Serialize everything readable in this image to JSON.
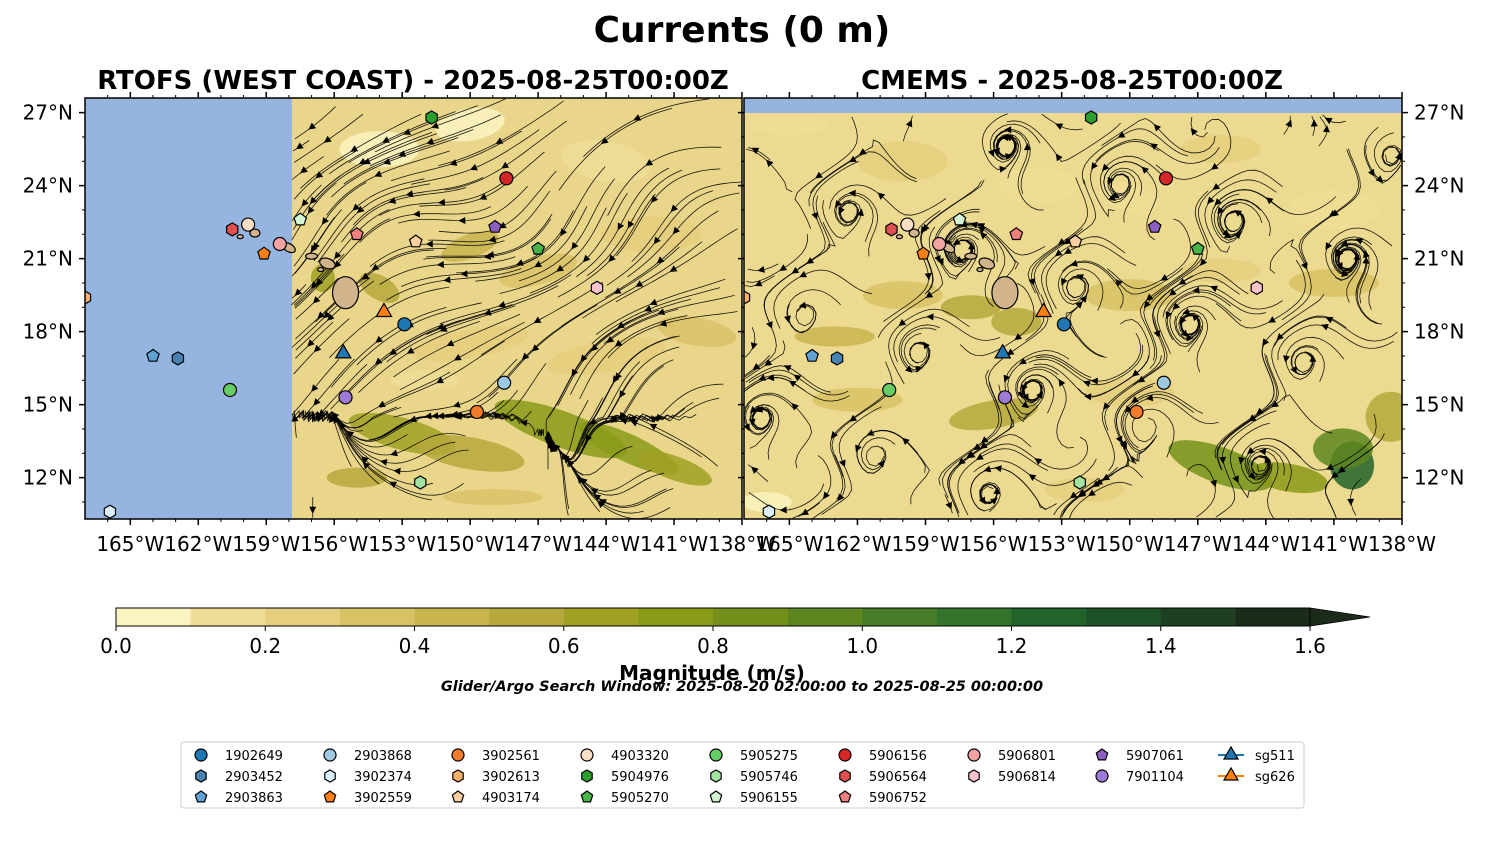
{
  "figure": {
    "title": "Currents (0 m)",
    "search_window": "Glider/Argo Search Window: 2025-08-20 02:00:00 to 2025-08-25 00:00:00"
  },
  "panels": [
    {
      "title": "RTOFS (WEST COAST) - 2025-08-25T00:00Z"
    },
    {
      "title": "CMEMS - 2025-08-25T00:00Z"
    }
  ],
  "colorbar": {
    "label": "Magnitude (m/s)",
    "ticks": [
      "0.0",
      "0.2",
      "0.4",
      "0.6",
      "0.8",
      "1.0",
      "1.2",
      "1.4",
      "1.6"
    ],
    "levels": [
      0.0,
      0.1,
      0.2,
      0.3,
      0.4,
      0.5,
      0.6,
      0.7,
      0.8,
      0.9,
      1.0,
      1.1,
      1.2,
      1.3,
      1.4,
      1.5,
      1.6
    ],
    "extend": "max",
    "colors": [
      "#fbf3c0",
      "#f0dd95",
      "#e5cf7e",
      "#d9c266",
      "#c9b44d",
      "#b6a83d",
      "#9fa125",
      "#899a18",
      "#74901a",
      "#5e8620",
      "#487d28",
      "#33732c",
      "#22632c",
      "#1c5228",
      "#1d3f22",
      "#1c2c1b"
    ]
  },
  "chart_data": [
    {
      "type": "map",
      "title": "RTOFS (WEST COAST) - 2025-08-25T00:00Z",
      "xlabel": "",
      "ylabel": "",
      "xlim": [
        -167,
        -138
      ],
      "ylim": [
        10.3,
        27.6
      ],
      "xticks": [
        "165°W",
        "162°W",
        "159°W",
        "156°W",
        "153°W",
        "150°W",
        "147°W",
        "144°W",
        "141°W",
        "138°W"
      ],
      "yticks": [
        "27°N",
        "24°N",
        "21°N",
        "18°N",
        "15°N",
        "12°N"
      ],
      "model_domain_west_lon": -157.9,
      "field": "surface current magnitude (m/s) with streamlines"
    },
    {
      "type": "map",
      "title": "CMEMS - 2025-08-25T00:00Z",
      "xlabel": "",
      "ylabel": "",
      "xlim": [
        -167,
        -138
      ],
      "ylim": [
        10.3,
        27.6
      ],
      "xticks": [
        "165°W",
        "162°W",
        "159°W",
        "156°W",
        "153°W",
        "150°W",
        "147°W",
        "144°W",
        "141°W",
        "138°W"
      ],
      "yticks": [
        "27°N",
        "24°N",
        "21°N",
        "18°N",
        "15°N",
        "12°N"
      ],
      "model_domain_north_lat": 27.0,
      "field": "surface current magnitude (m/s) with streamlines"
    }
  ],
  "instruments": [
    {
      "id": "1902649",
      "marker": "circle",
      "color": "#1f77b4",
      "lon": -152.9,
      "lat": 18.3
    },
    {
      "id": "2903452",
      "marker": "hexagon",
      "color": "#4682b4",
      "lon": -162.9,
      "lat": 16.9
    },
    {
      "id": "2903863",
      "marker": "pentagon",
      "color": "#5fa2d6",
      "lon": -164.0,
      "lat": 17.0
    },
    {
      "id": "2903868",
      "marker": "circle",
      "color": "#9ecae1",
      "lon": -148.5,
      "lat": 15.9
    },
    {
      "id": "3902374",
      "marker": "hexagon",
      "color": "#dbeefc",
      "lon": -165.9,
      "lat": 10.6
    },
    {
      "id": "3902559",
      "marker": "pentagon",
      "color": "#ff7f0e",
      "lon": -159.1,
      "lat": 21.2
    },
    {
      "id": "3902561",
      "marker": "circle",
      "color": "#f07d2c",
      "lon": -149.7,
      "lat": 14.7
    },
    {
      "id": "3902613",
      "marker": "hexagon",
      "color": "#fdae6b",
      "lon": -167.0,
      "lat": 19.4
    },
    {
      "id": "4903174",
      "marker": "pentagon",
      "color": "#fdd0a2",
      "lon": -152.4,
      "lat": 21.7
    },
    {
      "id": "4903320",
      "marker": "circle",
      "color": "#fde0c5",
      "lon": -159.8,
      "lat": 22.4
    },
    {
      "id": "5904976",
      "marker": "hexagon",
      "color": "#2ca02c",
      "lon": -151.7,
      "lat": 26.8
    },
    {
      "id": "5905270",
      "marker": "pentagon",
      "color": "#46b447",
      "lon": -147.0,
      "lat": 21.4
    },
    {
      "id": "5905275",
      "marker": "circle",
      "color": "#66cc66",
      "lon": -160.6,
      "lat": 15.6
    },
    {
      "id": "5905746",
      "marker": "hexagon",
      "color": "#a1e3a1",
      "lon": -152.2,
      "lat": 11.8
    },
    {
      "id": "5906155",
      "marker": "pentagon",
      "color": "#d4f5d4",
      "lon": -157.5,
      "lat": 22.6
    },
    {
      "id": "5906156",
      "marker": "circle",
      "color": "#d62728",
      "lon": -148.4,
      "lat": 24.3
    },
    {
      "id": "5906564",
      "marker": "hexagon",
      "color": "#e05050",
      "lon": -160.5,
      "lat": 22.2
    },
    {
      "id": "5906752",
      "marker": "pentagon",
      "color": "#f08080",
      "lon": -155.0,
      "lat": 22.0
    },
    {
      "id": "5906801",
      "marker": "circle",
      "color": "#f4a3a3",
      "lon": -158.4,
      "lat": 21.6
    },
    {
      "id": "5906814",
      "marker": "hexagon",
      "color": "#fbc4cc",
      "lon": -144.4,
      "lat": 19.8
    },
    {
      "id": "5907061",
      "marker": "pentagon",
      "color": "#8e5fc2",
      "lon": -148.9,
      "lat": 22.3
    },
    {
      "id": "7901104",
      "marker": "circle",
      "color": "#9e7bd6",
      "lon": -155.5,
      "lat": 15.3
    },
    {
      "id": "sg511",
      "marker": "triangle",
      "color": "#1f77b4",
      "lon": -155.6,
      "lat": 17.1
    },
    {
      "id": "sg626",
      "marker": "triangle",
      "color": "#ff7f0e",
      "lon": -153.8,
      "lat": 18.8
    }
  ],
  "legend": {
    "columns": [
      [
        "1902649",
        "2903452",
        "2903863"
      ],
      [
        "2903868",
        "3902374",
        "3902559"
      ],
      [
        "3902561",
        "3902613",
        "4903174"
      ],
      [
        "4903320",
        "5904976",
        "5905270"
      ],
      [
        "5905275",
        "5905746",
        "5906155"
      ],
      [
        "5906156",
        "5906564",
        "5906752"
      ],
      [
        "5906801",
        "5906814"
      ],
      [
        "5907061",
        "7901104"
      ],
      [
        "sg511",
        "sg626"
      ]
    ]
  },
  "colors": {
    "ocean_land_mask": "#95b5e0",
    "streamline": "#000000",
    "island_fill": "#d2b48c"
  }
}
